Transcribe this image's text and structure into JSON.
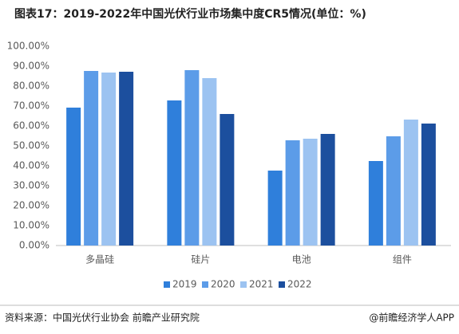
{
  "chart_data": {
    "type": "bar",
    "title": "图表17：2019-2022年中国光伏行业市场集中度CR5情况(单位：%)",
    "categories": [
      "多晶硅",
      "硅片",
      "电池",
      "组件"
    ],
    "series": [
      {
        "name": "2019",
        "color": "#2f7fdb",
        "values": [
          69.2,
          72.8,
          37.6,
          42.4
        ]
      },
      {
        "name": "2020",
        "color": "#5c9ce8",
        "values": [
          87.6,
          88,
          52.8,
          54.8
        ]
      },
      {
        "name": "2021",
        "color": "#9cc3f1",
        "values": [
          86.8,
          84,
          53.6,
          63.2
        ]
      },
      {
        "name": "2022",
        "color": "#1c4f9e",
        "values": [
          87.2,
          66,
          56,
          61.2
        ]
      }
    ],
    "ylim": [
      0,
      100
    ],
    "yticks": [
      {
        "value": 0,
        "label": "0.00%"
      },
      {
        "value": 10,
        "label": "10.00%"
      },
      {
        "value": 20,
        "label": "20.00%"
      },
      {
        "value": 30,
        "label": "30.00%"
      },
      {
        "value": 40,
        "label": "40.00%"
      },
      {
        "value": 50,
        "label": "50.00%"
      },
      {
        "value": 60,
        "label": "60.00%"
      },
      {
        "value": 70,
        "label": "70.00%"
      },
      {
        "value": 80,
        "label": "80.00%"
      },
      {
        "value": 90,
        "label": "90.00%"
      },
      {
        "value": 100,
        "label": "100.00%"
      }
    ],
    "legend": "bottom",
    "source": "资料来源：中国光伏行业协会 前瞻产业研究院",
    "credit": "@前瞻经济学人APP"
  }
}
